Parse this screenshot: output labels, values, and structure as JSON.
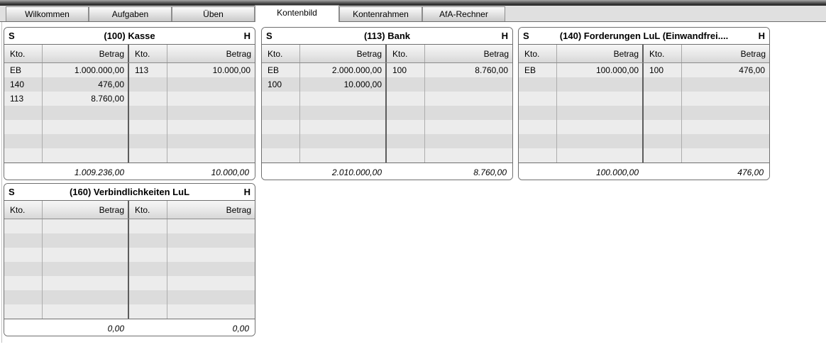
{
  "window": {
    "tabs": [
      {
        "label": "Wilkommen",
        "active": false
      },
      {
        "label": "Aufgaben",
        "active": false
      },
      {
        "label": "Üben",
        "active": false
      },
      {
        "label": "Kontenbild",
        "active": true
      },
      {
        "label": "Kontenrahmen",
        "active": false
      },
      {
        "label": "AfA-Rechner",
        "active": false
      }
    ]
  },
  "layout": {
    "rows_per_account": 7
  },
  "colors": {
    "row_odd": "#ececec",
    "row_even": "#dcdcdc",
    "panel_border": "#6f6f6f",
    "divider": "#5c5c5c"
  },
  "accounts": [
    {
      "soll_label": "S",
      "haben_label": "H",
      "title": "(100) Kasse",
      "col_headers": [
        "Kto.",
        "Betrag",
        "Kto.",
        "Betrag"
      ],
      "debit_rows": [
        {
          "kto": "EB",
          "betrag": "1.000.000,00"
        },
        {
          "kto": "140",
          "betrag": "476,00"
        },
        {
          "kto": "113",
          "betrag": "8.760,00"
        }
      ],
      "credit_rows": [
        {
          "kto": "113",
          "betrag": "10.000,00"
        }
      ],
      "debit_total": "1.009.236,00",
      "credit_total": "10.000,00"
    },
    {
      "soll_label": "S",
      "haben_label": "H",
      "title": "(113) Bank",
      "col_headers": [
        "Kto.",
        "Betrag",
        "Kto.",
        "Betrag"
      ],
      "debit_rows": [
        {
          "kto": "EB",
          "betrag": "2.000.000,00"
        },
        {
          "kto": "100",
          "betrag": "10.000,00"
        }
      ],
      "credit_rows": [
        {
          "kto": "100",
          "betrag": "8.760,00"
        }
      ],
      "debit_total": "2.010.000,00",
      "credit_total": "8.760,00"
    },
    {
      "soll_label": "S",
      "haben_label": "H",
      "title": "(140) Forderungen LuL (Einwandfrei....",
      "col_headers": [
        "Kto.",
        "Betrag",
        "Kto.",
        "Betrag"
      ],
      "debit_rows": [
        {
          "kto": "EB",
          "betrag": "100.000,00"
        }
      ],
      "credit_rows": [
        {
          "kto": "100",
          "betrag": "476,00"
        }
      ],
      "debit_total": "100.000,00",
      "credit_total": "476,00"
    },
    {
      "soll_label": "S",
      "haben_label": "H",
      "title": "(160) Verbindlichkeiten LuL",
      "col_headers": [
        "Kto.",
        "Betrag",
        "Kto.",
        "Betrag"
      ],
      "debit_rows": [],
      "credit_rows": [],
      "debit_total": "0,00",
      "credit_total": "0,00"
    }
  ]
}
